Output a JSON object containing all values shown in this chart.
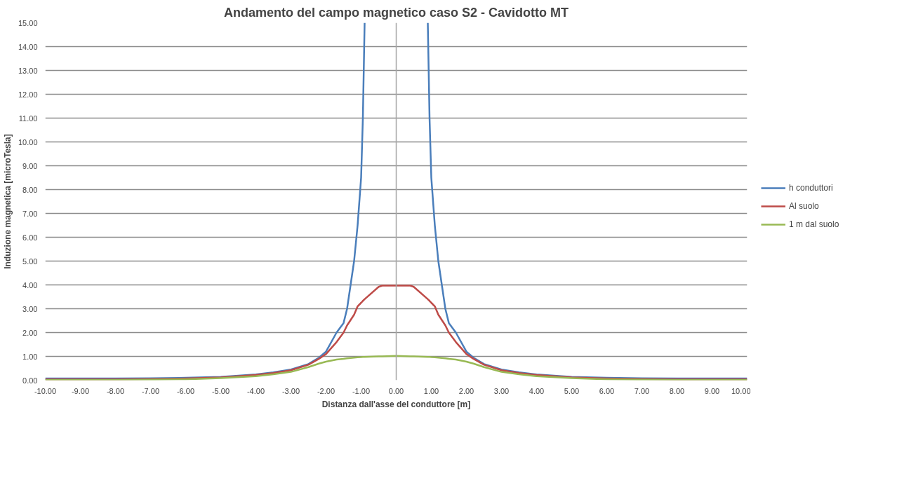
{
  "chart_data": {
    "type": "line",
    "title": "Andamento del campo magnetico caso S2 - Cavidotto MT",
    "xlabel": "Distanza dall'asse del conduttore [m]",
    "ylabel": "Induzione magnetica [microTesla]",
    "x": [
      -10,
      -9,
      -8,
      -7,
      -6,
      -5,
      -4,
      -3.5,
      -3,
      -2.5,
      -2.2,
      -2,
      -1.7,
      -1.5,
      -1.4,
      -1.2,
      -1.1,
      -1,
      -0.95,
      -0.9,
      -0.5,
      -0.4,
      0,
      0.4,
      0.5,
      0.9,
      0.95,
      1,
      1.1,
      1.2,
      1.4,
      1.5,
      1.7,
      2,
      2.2,
      2.5,
      3,
      3.5,
      4,
      5,
      6,
      7,
      8,
      9,
      10
    ],
    "series": [
      {
        "name": "h conduttori",
        "color": "#4a7ebb",
        "values": [
          0.07,
          0.07,
          0.07,
          0.08,
          0.1,
          0.14,
          0.24,
          0.33,
          0.45,
          0.68,
          0.95,
          1.2,
          2.0,
          2.4,
          3.0,
          5.0,
          6.5,
          8.5,
          11,
          15,
          null,
          null,
          null,
          null,
          null,
          15,
          11,
          8.5,
          6.5,
          5.0,
          3.0,
          2.4,
          2.0,
          1.2,
          0.95,
          0.68,
          0.45,
          0.33,
          0.24,
          0.14,
          0.1,
          0.08,
          0.07,
          0.07,
          0.07
        ]
      },
      {
        "name": "Al suolo",
        "color": "#be4b48",
        "values": [
          0.04,
          0.04,
          0.04,
          0.05,
          0.07,
          0.12,
          0.22,
          0.3,
          0.42,
          0.65,
          0.9,
          1.1,
          1.6,
          2.0,
          2.3,
          2.75,
          3.1,
          3.25,
          3.33,
          3.4,
          3.92,
          3.97,
          3.97,
          3.97,
          3.92,
          3.4,
          3.33,
          3.25,
          3.1,
          2.75,
          2.3,
          2.0,
          1.6,
          1.1,
          0.9,
          0.65,
          0.42,
          0.3,
          0.22,
          0.12,
          0.07,
          0.05,
          0.04,
          0.04,
          0.04
        ]
      },
      {
        "name": "1 m dal suolo",
        "color": "#98b954",
        "values": [
          0.01,
          0.01,
          0.01,
          0.02,
          0.04,
          0.09,
          0.17,
          0.25,
          0.35,
          0.55,
          0.7,
          0.78,
          0.87,
          0.9,
          0.92,
          0.95,
          0.96,
          0.97,
          0.98,
          0.98,
          1.0,
          1.0,
          1.02,
          1.0,
          1.0,
          0.98,
          0.98,
          0.97,
          0.96,
          0.95,
          0.92,
          0.9,
          0.87,
          0.78,
          0.7,
          0.55,
          0.35,
          0.25,
          0.17,
          0.09,
          0.04,
          0.02,
          0.01,
          0.01,
          0.01
        ]
      }
    ],
    "xlim": [
      -10,
      10
    ],
    "xticks": [
      {
        "value": -10,
        "label": "-10.00"
      },
      {
        "value": -9,
        "label": "-9.00"
      },
      {
        "value": -8,
        "label": "-8.00"
      },
      {
        "value": -7,
        "label": "-7.00"
      },
      {
        "value": -6,
        "label": "-6.00"
      },
      {
        "value": -5,
        "label": "-5.00"
      },
      {
        "value": -4,
        "label": "-4.00"
      },
      {
        "value": -3,
        "label": "-3.00"
      },
      {
        "value": -2,
        "label": "-2.00"
      },
      {
        "value": -1,
        "label": "-1.00"
      },
      {
        "value": 0,
        "label": "0.00"
      },
      {
        "value": 1,
        "label": "1.00"
      },
      {
        "value": 2,
        "label": "2.00"
      },
      {
        "value": 3,
        "label": "3.00"
      },
      {
        "value": 4,
        "label": "4.00"
      },
      {
        "value": 5,
        "label": "5.00"
      },
      {
        "value": 6,
        "label": "6.00"
      },
      {
        "value": 7,
        "label": "7.00"
      },
      {
        "value": 8,
        "label": "8.00"
      },
      {
        "value": 9,
        "label": "9.00"
      },
      {
        "value": 10,
        "label": "10.00"
      }
    ],
    "ylim": [
      0,
      15
    ],
    "yticks": [
      {
        "value": 0,
        "label": "0.00"
      },
      {
        "value": 1,
        "label": "1.00"
      },
      {
        "value": 2,
        "label": "2.00"
      },
      {
        "value": 3,
        "label": "3.00"
      },
      {
        "value": 4,
        "label": "4.00"
      },
      {
        "value": 5,
        "label": "5.00"
      },
      {
        "value": 6,
        "label": "6.00"
      },
      {
        "value": 7,
        "label": "7.00"
      },
      {
        "value": 8,
        "label": "8.00"
      },
      {
        "value": 9,
        "label": "9.00"
      },
      {
        "value": 10,
        "label": "10.00"
      },
      {
        "value": 11,
        "label": "11.00"
      },
      {
        "value": 12,
        "label": "12.00"
      },
      {
        "value": 13,
        "label": "13.00"
      },
      {
        "value": 14,
        "label": "14.00"
      },
      {
        "value": 15,
        "label": "15.00"
      }
    ],
    "ref_lines": [
      {
        "axis": "x",
        "value": 0,
        "color": "#a6a6a6"
      }
    ],
    "grid": "y",
    "legend": "right",
    "marker": "none",
    "line_style": "solid"
  }
}
